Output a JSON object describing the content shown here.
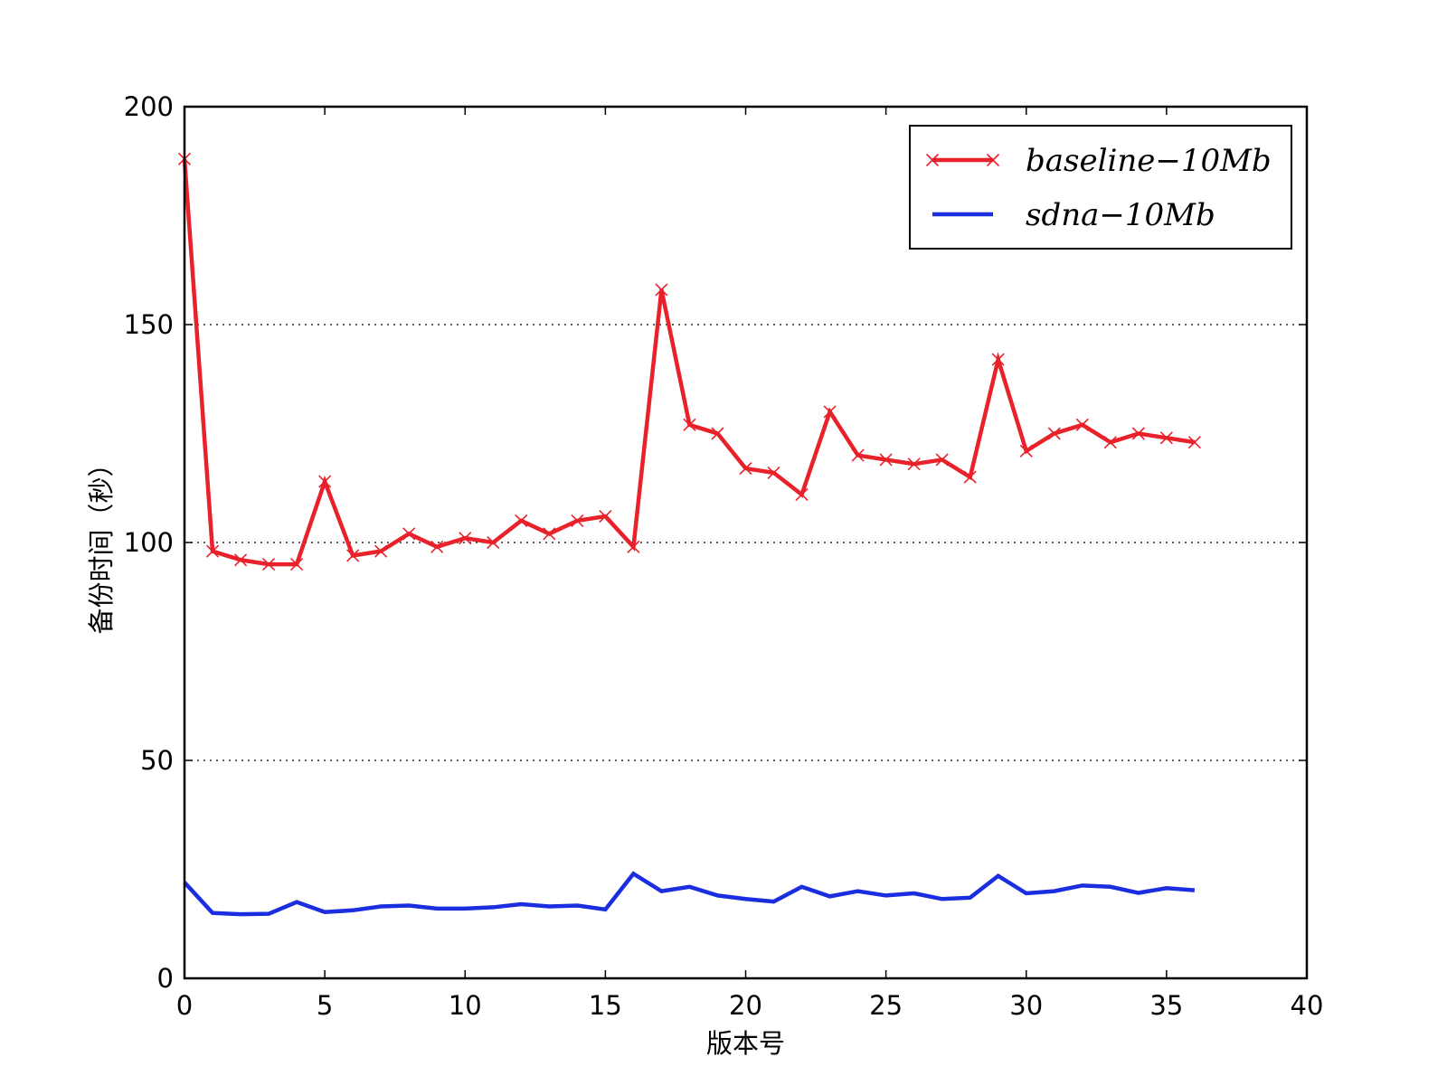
{
  "chart_data": {
    "type": "line",
    "title": "",
    "xlabel": "版本号",
    "ylabel": "备份时间（秒）",
    "xlim": [
      0,
      40
    ],
    "ylim": [
      0,
      200
    ],
    "xticks": [
      0,
      5,
      10,
      15,
      20,
      25,
      30,
      35,
      40
    ],
    "yticks": [
      0,
      50,
      100,
      150,
      200
    ],
    "grid": "horizontal dotted",
    "legend_position": "top-right",
    "x": [
      0,
      1,
      2,
      3,
      4,
      5,
      6,
      7,
      8,
      9,
      10,
      11,
      12,
      13,
      14,
      15,
      16,
      17,
      18,
      19,
      20,
      21,
      22,
      23,
      24,
      25,
      26,
      27,
      28,
      29,
      30,
      31,
      32,
      33,
      34,
      35,
      36
    ],
    "series": [
      {
        "name": "baseline−10Mb",
        "color": "#e8212a",
        "marker": "x",
        "values": [
          188,
          98,
          96,
          95,
          95,
          114,
          97,
          98,
          102,
          99,
          101,
          100,
          105,
          102,
          105,
          106,
          99,
          158,
          127,
          125,
          117,
          116,
          111,
          130,
          120,
          119,
          118,
          119,
          115,
          142,
          121,
          125,
          127,
          123,
          125,
          124,
          123
        ]
      },
      {
        "name": "sdna−10Mb",
        "color": "#1a2ee0",
        "marker": "none",
        "values": [
          22,
          15,
          14.7,
          14.8,
          17.5,
          15.2,
          15.6,
          16.5,
          16.7,
          16,
          16,
          16.3,
          17,
          16.5,
          16.7,
          15.8,
          24,
          20,
          21,
          19,
          18.2,
          17.6,
          21,
          18.8,
          20,
          19,
          19.5,
          18.2,
          18.5,
          23.5,
          19.5,
          20,
          21.3,
          21,
          19.6,
          20.7,
          20.2
        ]
      }
    ]
  }
}
